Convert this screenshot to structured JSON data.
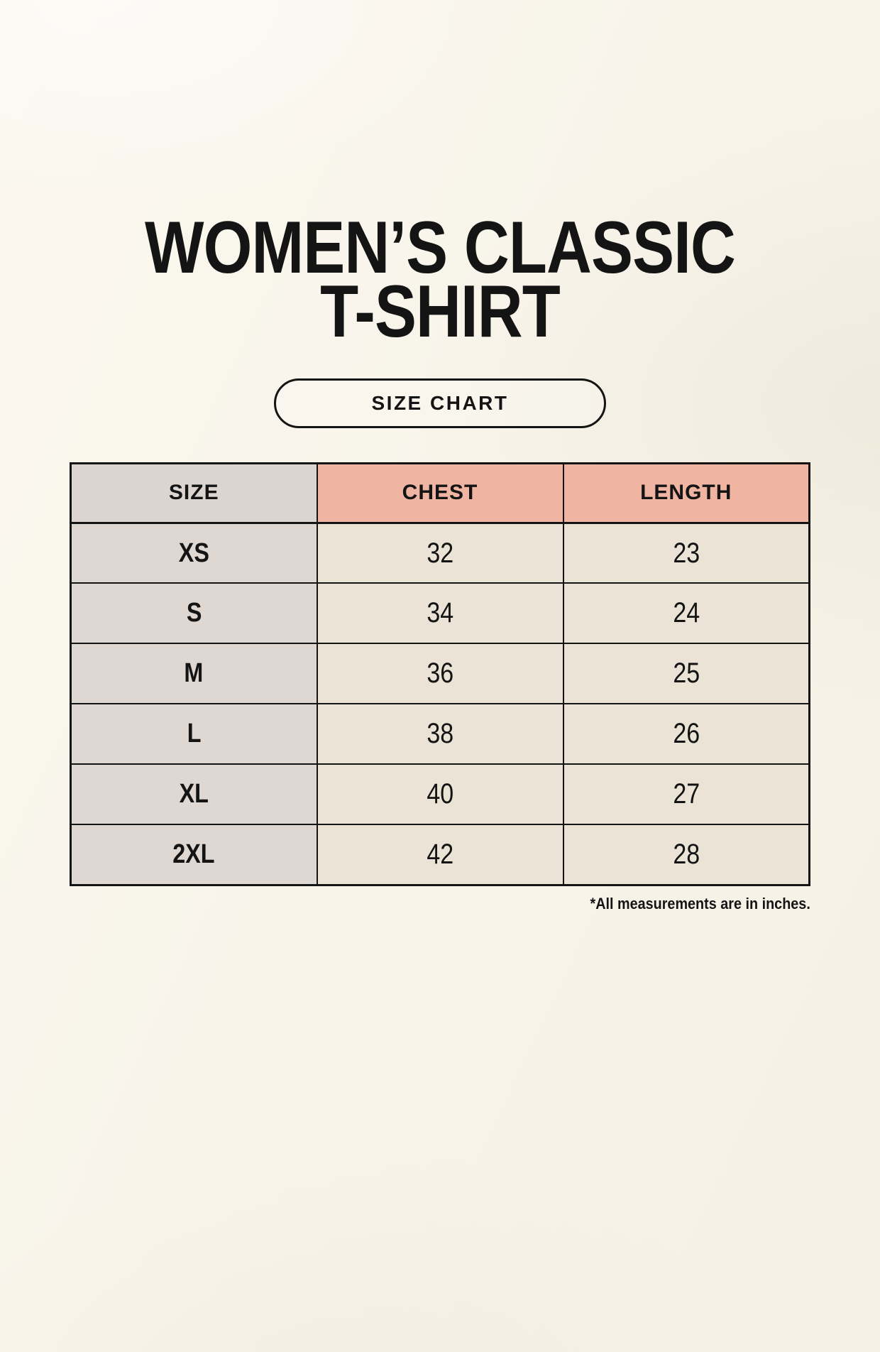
{
  "title": {
    "line1": "WOMEN’S CLASSIC",
    "line2": "T-SHIRT"
  },
  "size_chart_button": {
    "label": "SIZE CHART"
  },
  "table": {
    "headers": [
      "SIZE",
      "CHEST",
      "LENGTH"
    ],
    "rows": [
      {
        "size": "XS",
        "chest": "32",
        "length": "23"
      },
      {
        "size": "S",
        "chest": "34",
        "length": "24"
      },
      {
        "size": "M",
        "chest": "36",
        "length": "25"
      },
      {
        "size": "L",
        "chest": "38",
        "length": "26"
      },
      {
        "size": "XL",
        "chest": "40",
        "length": "27"
      },
      {
        "size": "2XL",
        "chest": "42",
        "length": "28"
      }
    ]
  },
  "footnote": "*All measurements are in inches.",
  "colors": {
    "page_background": "#f8f4ea",
    "header_size_bg": "#dcd4cf",
    "header_measure_bg": "#efb4a2",
    "size_column_bg": "#ded7d2",
    "value_cell_bg": "#ebe4d6",
    "border": "#141414",
    "text": "#141414"
  }
}
